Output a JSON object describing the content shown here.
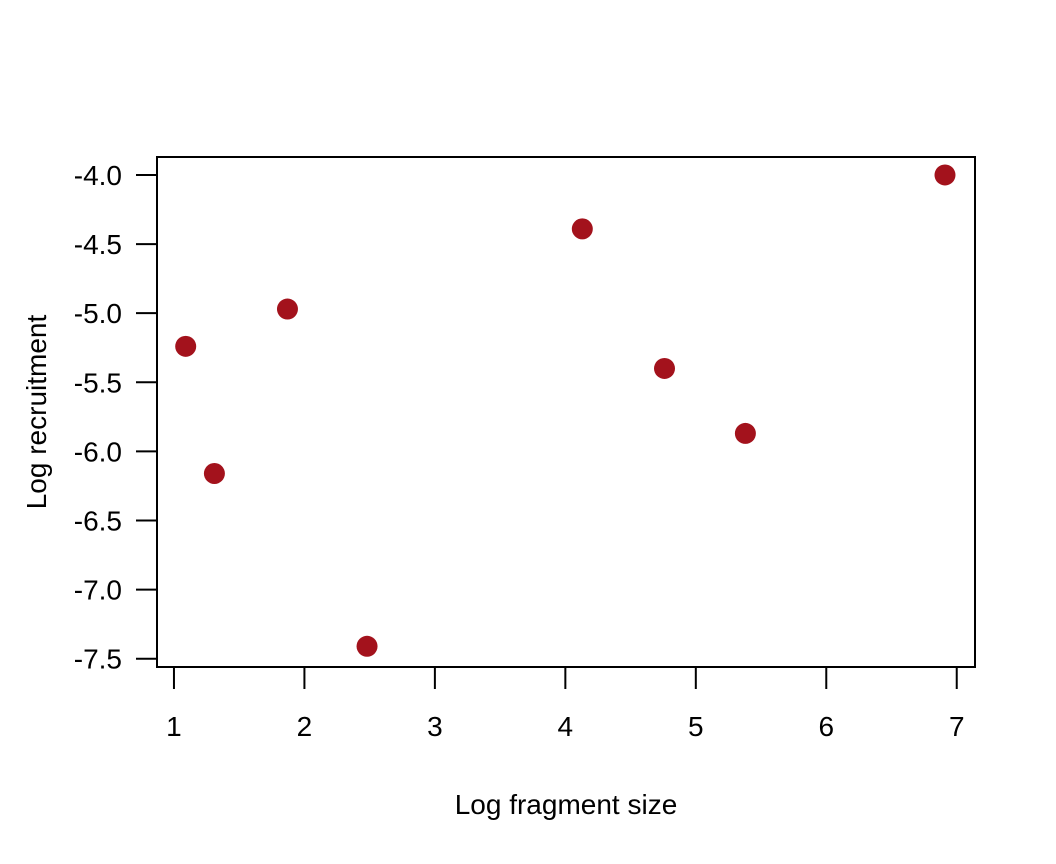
{
  "chart_data": {
    "type": "scatter",
    "xlabel": "Log fragment size",
    "ylabel": "Log recruitment",
    "xlim": [
      0.87,
      7.14
    ],
    "ylim": [
      -7.56,
      -3.87
    ],
    "x_ticks": [
      1,
      2,
      3,
      4,
      5,
      6,
      7
    ],
    "x_tick_labels": [
      "1",
      "2",
      "3",
      "4",
      "5",
      "6",
      "7"
    ],
    "y_ticks": [
      -4.0,
      -4.5,
      -5.0,
      -5.5,
      -6.0,
      -6.5,
      -7.0,
      -7.5
    ],
    "y_tick_labels": [
      "-4.0",
      "-4.5",
      "-5.0",
      "-5.5",
      "-6.0",
      "-6.5",
      "-7.0",
      "-7.5"
    ],
    "grid": false,
    "point_color": "#a3121c",
    "points": [
      {
        "x": 1.09,
        "y": -5.24
      },
      {
        "x": 1.31,
        "y": -6.16
      },
      {
        "x": 1.87,
        "y": -4.97
      },
      {
        "x": 2.48,
        "y": -7.41
      },
      {
        "x": 4.13,
        "y": -4.39
      },
      {
        "x": 4.76,
        "y": -5.4
      },
      {
        "x": 5.38,
        "y": -5.87
      },
      {
        "x": 6.91,
        "y": -4.0
      }
    ]
  }
}
